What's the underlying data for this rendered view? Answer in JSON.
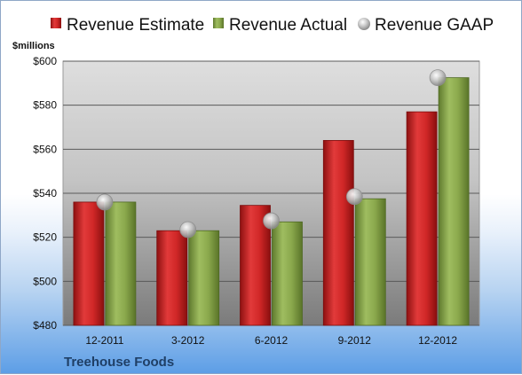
{
  "chart_data": {
    "type": "bar",
    "title": "",
    "ylabel": "$millions",
    "xlabel": "",
    "footer_label": "Treehouse Foods",
    "categories": [
      "12-2011",
      "3-2012",
      "6-2012",
      "9-2012",
      "12-2012"
    ],
    "series": [
      {
        "name": "Revenue Estimate",
        "kind": "bar",
        "color": "#d42a2a",
        "values": [
          536,
          523,
          534.5,
          564,
          577
        ]
      },
      {
        "name": "Revenue Actual",
        "kind": "bar",
        "color": "#8caa4f",
        "values": [
          536,
          523,
          527,
          537.5,
          592.5
        ]
      },
      {
        "name": "Revenue GAAP",
        "kind": "marker",
        "color": "#b8b8b8",
        "values": [
          536,
          523.5,
          527.5,
          538.5,
          592.5
        ]
      }
    ],
    "ylim": [
      480,
      600
    ],
    "yticks": [
      480,
      500,
      520,
      540,
      560,
      580,
      600
    ],
    "ytick_labels": [
      "$480",
      "$500",
      "$520",
      "$540",
      "$560",
      "$580",
      "$600"
    ],
    "grid": true,
    "legend_position": "top"
  }
}
